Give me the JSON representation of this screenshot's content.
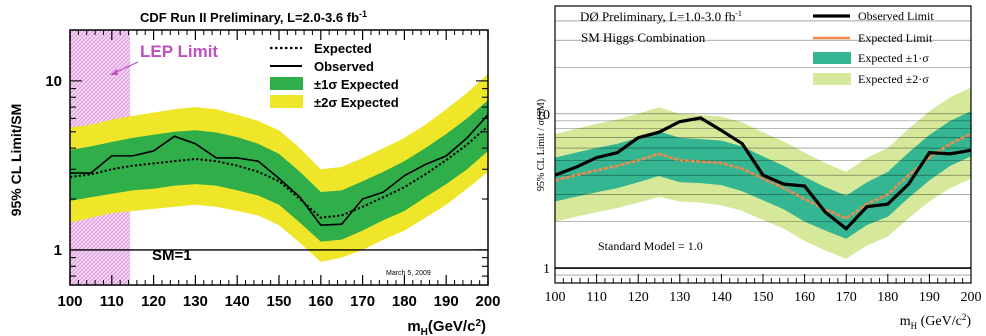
{
  "chart_data": [
    {
      "type": "line",
      "title": "CDF Run II Preliminary, L=2.0-3.6 fb",
      "title_sup": "-1",
      "xlabel": "m",
      "xlabel_sub": "H",
      "xlabel_unit": "(GeV/c",
      "xlabel_unit_sup": "2",
      "xlabel_unit_close": ")",
      "ylabel": "95% CL Limit/SM",
      "xlim": [
        100,
        200
      ],
      "ylim": [
        0.62,
        20
      ],
      "yscale": "log",
      "x_ticks": [
        100,
        110,
        120,
        130,
        140,
        150,
        160,
        170,
        180,
        190,
        200
      ],
      "y_ticks": [
        {
          "value": 1,
          "label": "1"
        },
        {
          "value": 10,
          "label": "10"
        }
      ],
      "x": [
        100,
        105,
        110,
        115,
        120,
        125,
        130,
        135,
        140,
        145,
        150,
        155,
        160,
        165,
        170,
        175,
        180,
        185,
        190,
        195,
        200
      ],
      "series": [
        {
          "name": "Expected",
          "style": "dotted",
          "values": [
            2.7,
            2.8,
            3.0,
            3.15,
            3.25,
            3.35,
            3.45,
            3.35,
            3.15,
            2.9,
            2.55,
            2.0,
            1.55,
            1.6,
            1.8,
            2.05,
            2.35,
            2.8,
            3.4,
            4.2,
            5.4
          ]
        },
        {
          "name": "Observed",
          "style": "solid",
          "values": [
            2.85,
            2.85,
            3.6,
            3.6,
            3.85,
            4.7,
            4.25,
            3.5,
            3.5,
            3.35,
            2.65,
            2.05,
            1.4,
            1.42,
            2.0,
            2.2,
            2.75,
            3.2,
            3.6,
            4.6,
            6.3
          ]
        }
      ],
      "bands": [
        {
          "name": "±2σ Expected",
          "color": "#f0e629",
          "lower": [
            1.45,
            1.55,
            1.65,
            1.7,
            1.75,
            1.8,
            1.85,
            1.8,
            1.7,
            1.6,
            1.4,
            1.1,
            0.85,
            0.9,
            1.0,
            1.15,
            1.3,
            1.55,
            1.85,
            2.3,
            2.9
          ],
          "upper": [
            5.3,
            5.5,
            5.9,
            6.2,
            6.5,
            6.8,
            7.0,
            6.8,
            6.3,
            5.8,
            5.1,
            4.0,
            3.0,
            3.1,
            3.5,
            4.0,
            4.6,
            5.5,
            6.8,
            8.5,
            11.0
          ]
        },
        {
          "name": "±1σ Expected",
          "color": "#2fae49",
          "lower": [
            1.95,
            2.05,
            2.15,
            2.25,
            2.3,
            2.4,
            2.45,
            2.4,
            2.25,
            2.1,
            1.85,
            1.45,
            1.12,
            1.15,
            1.3,
            1.5,
            1.7,
            2.05,
            2.45,
            3.0,
            3.85
          ],
          "upper": [
            3.9,
            4.1,
            4.35,
            4.6,
            4.8,
            5.0,
            5.1,
            4.95,
            4.65,
            4.25,
            3.7,
            2.9,
            2.2,
            2.25,
            2.55,
            2.9,
            3.35,
            4.0,
            4.85,
            6.0,
            7.7
          ]
        }
      ],
      "lep_limit": {
        "label": "LEP Limit",
        "x_max": 114.4,
        "color": "#e7a6e7"
      },
      "sm_line": {
        "label": "SM=1",
        "value": 1
      },
      "annotation_date": "March 5, 2009",
      "legend": [
        "Expected",
        "Observed",
        "±1σ Expected",
        "±2σ Expected"
      ],
      "legend_position": "top-right"
    },
    {
      "type": "line",
      "title": "DØ Preliminary, L=1.0-3.0 fb",
      "title_sup": "-1",
      "subtitle": "SM Higgs Combination",
      "xlabel": "m",
      "xlabel_sub": "H",
      "xlabel_unit": " (GeV/c",
      "xlabel_unit_sup": "2",
      "xlabel_unit_close": ")",
      "ylabel": "95% CL Limit / σ(SM)",
      "xlim": [
        100,
        200
      ],
      "ylim": [
        0.8,
        50
      ],
      "yscale": "log",
      "x_ticks": [
        100,
        110,
        120,
        130,
        140,
        150,
        160,
        170,
        180,
        190,
        200
      ],
      "y_ticks": [
        {
          "value": 1,
          "label": "1"
        },
        {
          "value": 10,
          "label": "10"
        }
      ],
      "x": [
        100,
        105,
        110,
        115,
        120,
        125,
        130,
        135,
        140,
        145,
        150,
        155,
        160,
        165,
        170,
        175,
        180,
        185,
        190,
        195,
        200
      ],
      "series": [
        {
          "name": "Observed Limit",
          "color": "#000000",
          "values": [
            4.0,
            4.5,
            5.2,
            5.6,
            7.0,
            7.6,
            8.9,
            9.4,
            7.8,
            6.4,
            4.0,
            3.5,
            3.4,
            2.3,
            1.8,
            2.5,
            2.6,
            3.5,
            5.6,
            5.5,
            5.8
          ]
        },
        {
          "name": "Expected Limit",
          "color": "#f08a4b",
          "values": [
            3.7,
            4.0,
            4.3,
            4.6,
            5.0,
            5.5,
            5.0,
            4.9,
            4.8,
            4.4,
            3.8,
            3.3,
            2.8,
            2.4,
            2.1,
            2.6,
            3.0,
            4.0,
            5.2,
            6.4,
            7.4
          ]
        }
      ],
      "bands": [
        {
          "name": "Expected ±2·σ",
          "color": "#d6e99a",
          "lower": [
            2.0,
            2.15,
            2.3,
            2.45,
            2.65,
            2.9,
            2.7,
            2.65,
            2.55,
            2.35,
            2.05,
            1.8,
            1.5,
            1.3,
            1.15,
            1.4,
            1.6,
            2.1,
            2.7,
            3.3,
            3.8
          ],
          "upper": [
            7.4,
            8.0,
            8.6,
            9.2,
            10.0,
            11.0,
            10.0,
            9.8,
            9.6,
            8.8,
            7.6,
            6.6,
            5.6,
            4.8,
            4.2,
            5.2,
            6.0,
            8.0,
            10.4,
            12.8,
            14.8
          ]
        },
        {
          "name": "Expected ±1·σ",
          "color": "#35b693",
          "lower": [
            2.7,
            2.9,
            3.1,
            3.3,
            3.6,
            3.95,
            3.6,
            3.55,
            3.45,
            3.15,
            2.75,
            2.4,
            2.0,
            1.75,
            1.55,
            1.9,
            2.15,
            2.85,
            3.7,
            4.6,
            5.3
          ],
          "upper": [
            5.2,
            5.6,
            6.0,
            6.4,
            7.0,
            7.7,
            7.0,
            6.85,
            6.7,
            6.15,
            5.3,
            4.6,
            3.9,
            3.35,
            2.95,
            3.6,
            4.2,
            5.6,
            7.3,
            9.0,
            10.4
          ]
        }
      ],
      "sm_line": {
        "label": "Standard Model = 1.0",
        "value": 1
      },
      "legend": [
        "Observed Limit",
        "Expected Limit",
        "Expected ±1·σ",
        "Expected ±2·σ"
      ],
      "legend_position": "top-right"
    }
  ]
}
